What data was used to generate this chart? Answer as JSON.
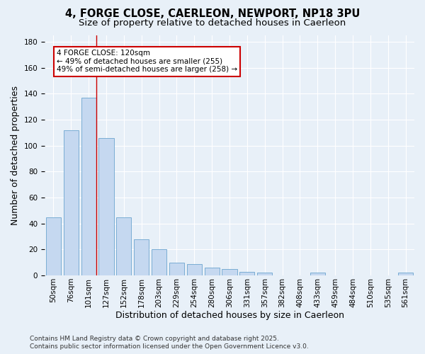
{
  "title1": "4, FORGE CLOSE, CAERLEON, NEWPORT, NP18 3PU",
  "title2": "Size of property relative to detached houses in Caerleon",
  "xlabel": "Distribution of detached houses by size in Caerleon",
  "ylabel": "Number of detached properties",
  "categories": [
    "50sqm",
    "76sqm",
    "101sqm",
    "127sqm",
    "152sqm",
    "178sqm",
    "203sqm",
    "229sqm",
    "254sqm",
    "280sqm",
    "306sqm",
    "331sqm",
    "357sqm",
    "382sqm",
    "408sqm",
    "433sqm",
    "459sqm",
    "484sqm",
    "510sqm",
    "535sqm",
    "561sqm"
  ],
  "values": [
    45,
    112,
    137,
    106,
    45,
    28,
    20,
    10,
    9,
    6,
    5,
    3,
    2,
    0,
    0,
    2,
    0,
    0,
    0,
    0,
    2
  ],
  "bar_color": "#c5d8f0",
  "bar_edge_color": "#7aadd4",
  "vline_color": "#cc0000",
  "vline_x": 2.43,
  "annotation_line1": "4 FORGE CLOSE: 120sqm",
  "annotation_line2": "← 49% of detached houses are smaller (255)",
  "annotation_line3": "49% of semi-detached houses are larger (258) →",
  "bg_color": "#e8f0f8",
  "plot_bg_color": "#e8f0f8",
  "footer": "Contains HM Land Registry data © Crown copyright and database right 2025.\nContains public sector information licensed under the Open Government Licence v3.0.",
  "ylim_max": 185,
  "yticks": [
    0,
    20,
    40,
    60,
    80,
    100,
    120,
    140,
    160,
    180
  ],
  "title_fontsize": 10.5,
  "subtitle_fontsize": 9.5,
  "tick_fontsize": 7.5,
  "label_fontsize": 9
}
